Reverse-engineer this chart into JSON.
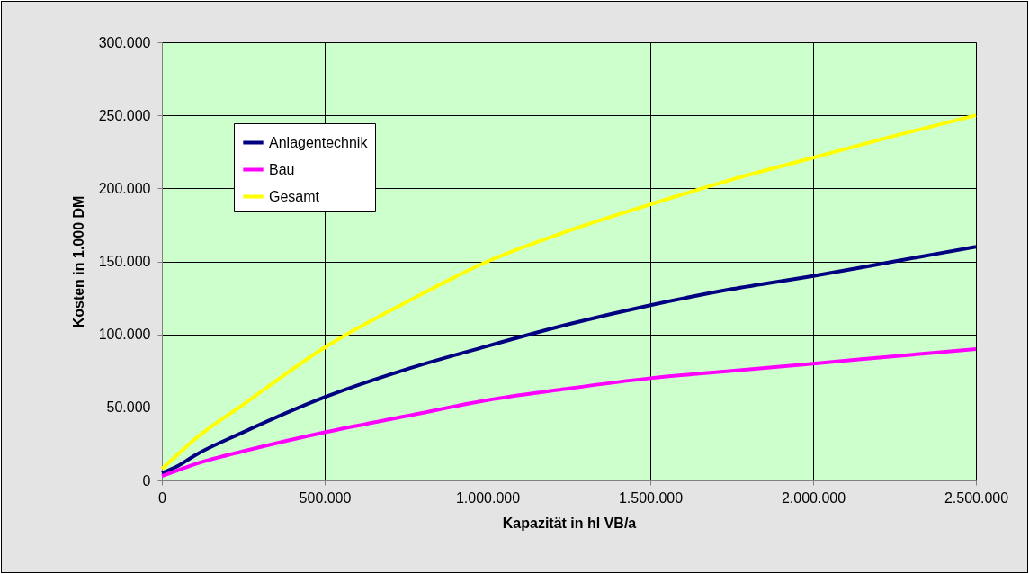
{
  "chart_data": {
    "type": "line",
    "xlabel": "Kapazität in hl VB/a",
    "ylabel": "Kosten in 1.000 DM",
    "x": [
      0,
      50000,
      100000,
      250000,
      500000,
      750000,
      1000000,
      1250000,
      1500000,
      1750000,
      2000000,
      2250000,
      2500000
    ],
    "series": [
      {
        "name": "Anlagentechnik",
        "color": "#000080",
        "values": [
          5000,
          10000,
          17000,
          33000,
          57000,
          76000,
          92000,
          107000,
          120000,
          131000,
          140000,
          150000,
          160000
        ]
      },
      {
        "name": "Bau",
        "color": "#ff00ff",
        "values": [
          3000,
          7000,
          11000,
          20000,
          33000,
          44000,
          55000,
          63000,
          70000,
          75000,
          80000,
          85000,
          90000
        ]
      },
      {
        "name": "Gesamt",
        "color": "#ffff00",
        "values": [
          8000,
          18000,
          28000,
          52000,
          91000,
          122000,
          150000,
          171000,
          189000,
          206000,
          221000,
          236000,
          250000
        ]
      }
    ],
    "xlim": [
      0,
      2500000
    ],
    "xticks": [
      0,
      {
        "value": 500000,
        "label": "500.000"
      },
      {
        "value": 1000000,
        "label": "1.000.000"
      },
      {
        "value": 1500000,
        "label": "1.500.000"
      },
      {
        "value": 2000000,
        "label": "2.000.000"
      },
      {
        "value": 2500000,
        "label": "2.500.000"
      }
    ],
    "ylim": [
      0,
      300000
    ],
    "yticks": [
      0,
      {
        "value": 50000,
        "label": "50.000"
      },
      {
        "value": 100000,
        "label": "100.000"
      },
      {
        "value": 150000,
        "label": "150.000"
      },
      {
        "value": 200000,
        "label": "200.000"
      },
      {
        "value": 250000,
        "label": "250.000"
      },
      {
        "value": 300000,
        "label": "300.000"
      }
    ],
    "grid": true,
    "legend": "top left",
    "marker": "none",
    "line_style": "solid"
  }
}
